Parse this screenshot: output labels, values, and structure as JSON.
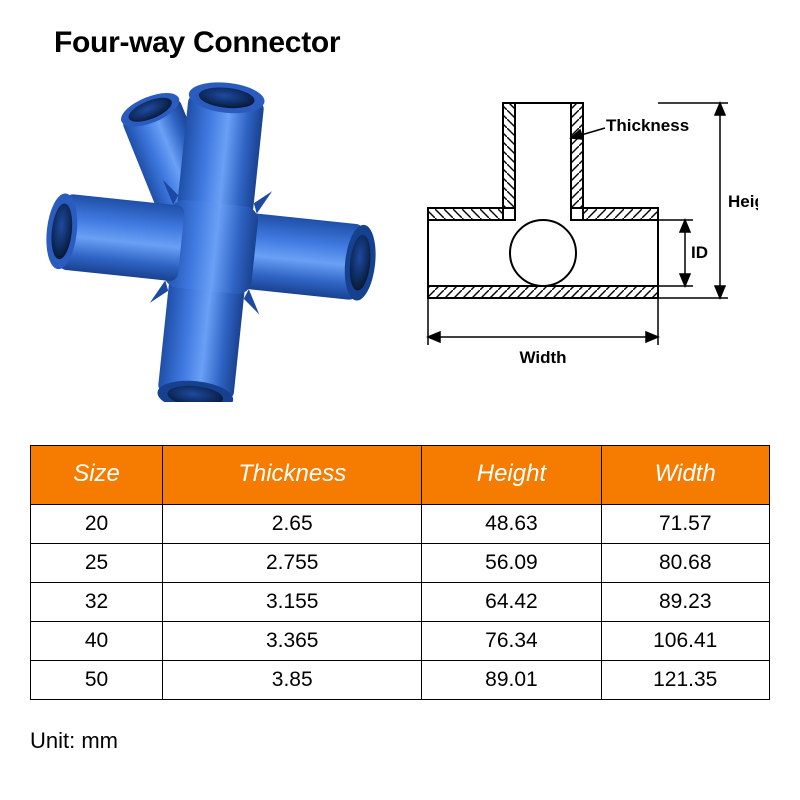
{
  "title": "Four-way Connector",
  "unit_label": "Unit: mm",
  "product_render": {
    "main_color": "#2f6bd8",
    "shade_color": "#2456b3",
    "light_color": "#4a82e6",
    "hole_dark": "#0e2a5c"
  },
  "cross_section": {
    "stroke": "#000000",
    "fill": "#ffffff",
    "hatch": "#000000",
    "labels": {
      "thickness": "Thickness",
      "height": "Height",
      "width": "Width",
      "id": "ID"
    },
    "label_fontsize": 17,
    "label_fontweight": "bold"
  },
  "table": {
    "header_bg": "#f57c00",
    "header_fg": "#ffffff",
    "border": "#000000",
    "columns": [
      "Size",
      "Thickness",
      "Height",
      "Width"
    ],
    "rows": [
      [
        "20",
        "2.65",
        "48.63",
        "71.57"
      ],
      [
        "25",
        "2.755",
        "56.09",
        "80.68"
      ],
      [
        "32",
        "3.155",
        "64.42",
        "89.23"
      ],
      [
        "40",
        "3.365",
        "76.34",
        "106.41"
      ],
      [
        "50",
        "3.85",
        "89.01",
        "121.35"
      ]
    ]
  }
}
